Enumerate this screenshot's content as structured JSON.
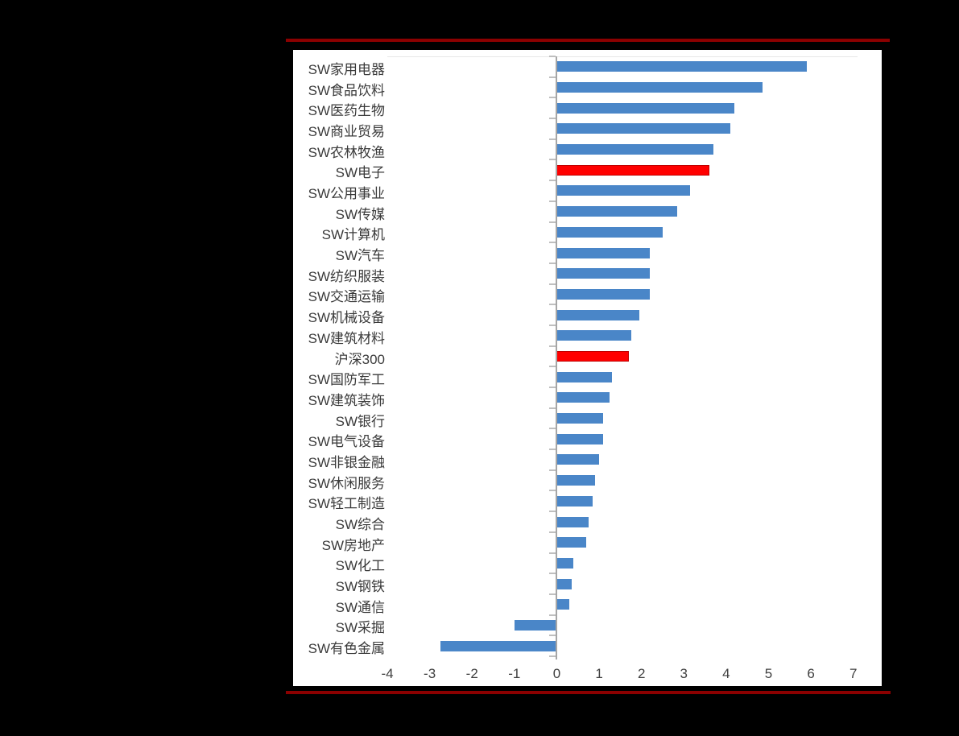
{
  "page": {
    "background_color": "#000000",
    "panel_color": "#ffffff",
    "accent_rule_color": "#8b0000"
  },
  "chart_data": {
    "type": "bar",
    "orientation": "horizontal",
    "title": "",
    "xlabel": "",
    "ylabel": "",
    "grid": false,
    "legend": false,
    "xlim": [
      -4,
      7.1
    ],
    "x_ticks": [
      "-4",
      "-3",
      "-2",
      "-1",
      "0",
      "1",
      "2",
      "3",
      "4",
      "5",
      "6",
      "7"
    ],
    "x_tick_values": [
      -4,
      -3,
      -2,
      -1,
      0,
      1,
      2,
      3,
      4,
      5,
      6,
      7
    ],
    "categories": [
      "SW家用电器",
      "SW食品饮料",
      "SW医药生物",
      "SW商业贸易",
      "SW农林牧渔",
      "SW电子",
      "SW公用事业",
      "SW传媒",
      "SW计算机",
      "SW汽车",
      "SW纺织服装",
      "SW交通运输",
      "SW机械设备",
      "SW建筑材料",
      "沪深300",
      "SW国防军工",
      "SW建筑装饰",
      "SW银行",
      "SW电气设备",
      "SW非银金融",
      "SW休闲服务",
      "SW轻工制造",
      "SW综合",
      "SW房地产",
      "SW化工",
      "SW钢铁",
      "SW通信",
      "SW采掘",
      "SW有色金属"
    ],
    "values": [
      5.9,
      4.85,
      4.2,
      4.1,
      3.7,
      3.6,
      3.15,
      2.85,
      2.5,
      2.2,
      2.2,
      2.2,
      1.95,
      1.75,
      1.7,
      1.3,
      1.25,
      1.1,
      1.1,
      1.0,
      0.9,
      0.85,
      0.75,
      0.7,
      0.4,
      0.35,
      0.3,
      -1.0,
      -2.75
    ],
    "highlight_indices": [
      5,
      14
    ],
    "colors": {
      "bar_default": "#4a86c8",
      "bar_highlight": "#ff0000",
      "bar_highlight_border": "#c00000",
      "axis_line": "#a6a6a6",
      "tick_mark": "#bfbfbf",
      "plot_border": "#e7e7e7",
      "category_label": "#3a3a3a",
      "x_tick_label": "#404040"
    }
  }
}
